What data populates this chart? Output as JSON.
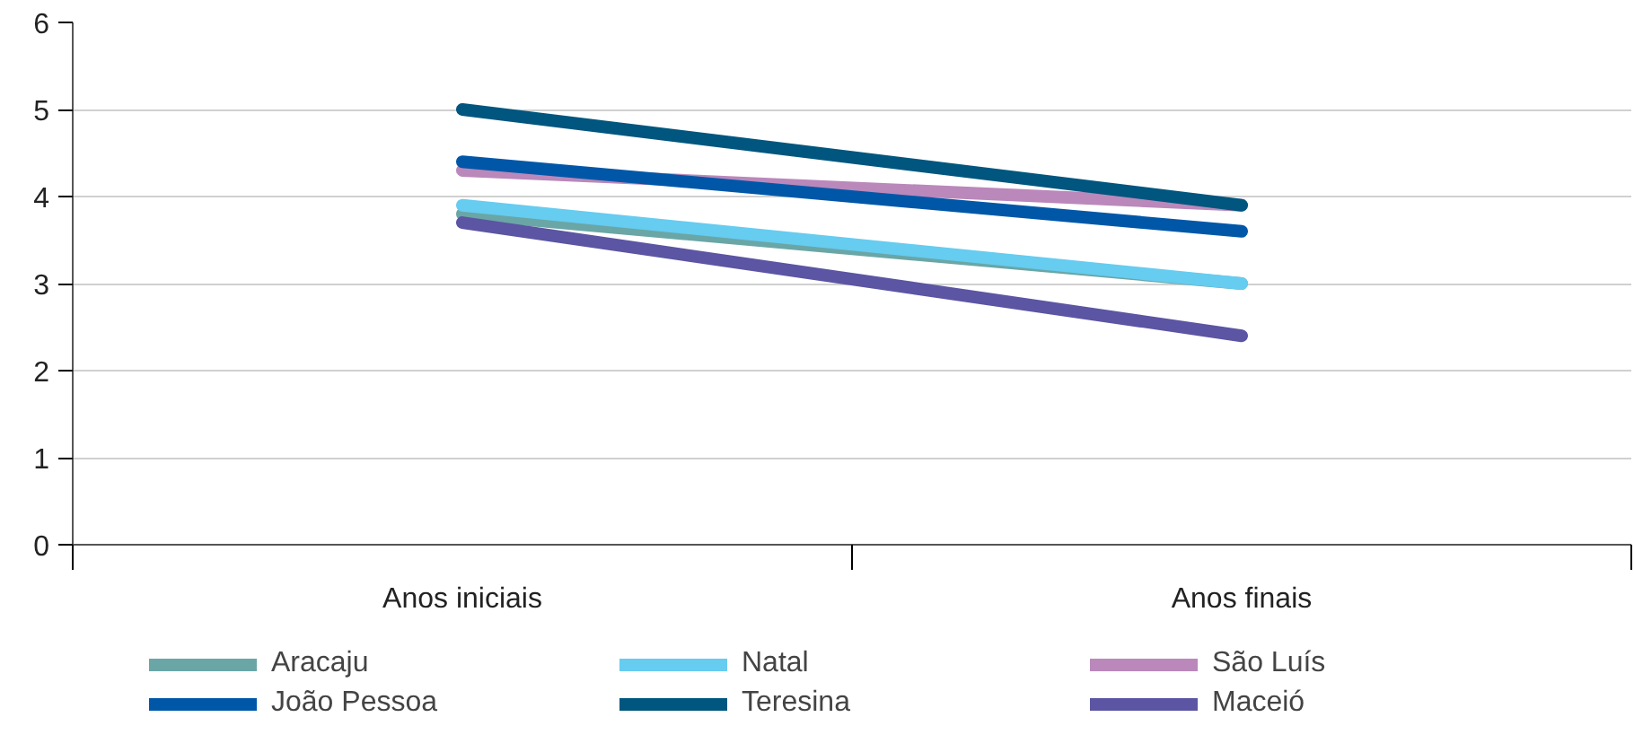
{
  "chart_data": {
    "type": "line",
    "categories": [
      "Anos iniciais",
      "Anos finais"
    ],
    "series": [
      {
        "name": "Aracaju",
        "color": "#6aa6a6",
        "values": [
          3.8,
          3.0
        ]
      },
      {
        "name": "Natal",
        "color": "#66ccf0",
        "values": [
          3.9,
          3.0
        ]
      },
      {
        "name": "São Luís",
        "color": "#ba88ba",
        "values": [
          4.3,
          3.9
        ]
      },
      {
        "name": "João Pessoa",
        "color": "#0057a8",
        "values": [
          4.4,
          3.6
        ]
      },
      {
        "name": "Teresina",
        "color": "#00567e",
        "values": [
          5.0,
          3.9
        ]
      },
      {
        "name": "Maceió",
        "color": "#5b55a3",
        "values": [
          3.7,
          2.4
        ]
      }
    ],
    "ylim": [
      0,
      6
    ],
    "yticks": [
      0,
      1,
      2,
      3,
      4,
      5,
      6
    ],
    "grid": "y",
    "legend": "bottom",
    "marker": "none",
    "line_style": "solid"
  }
}
